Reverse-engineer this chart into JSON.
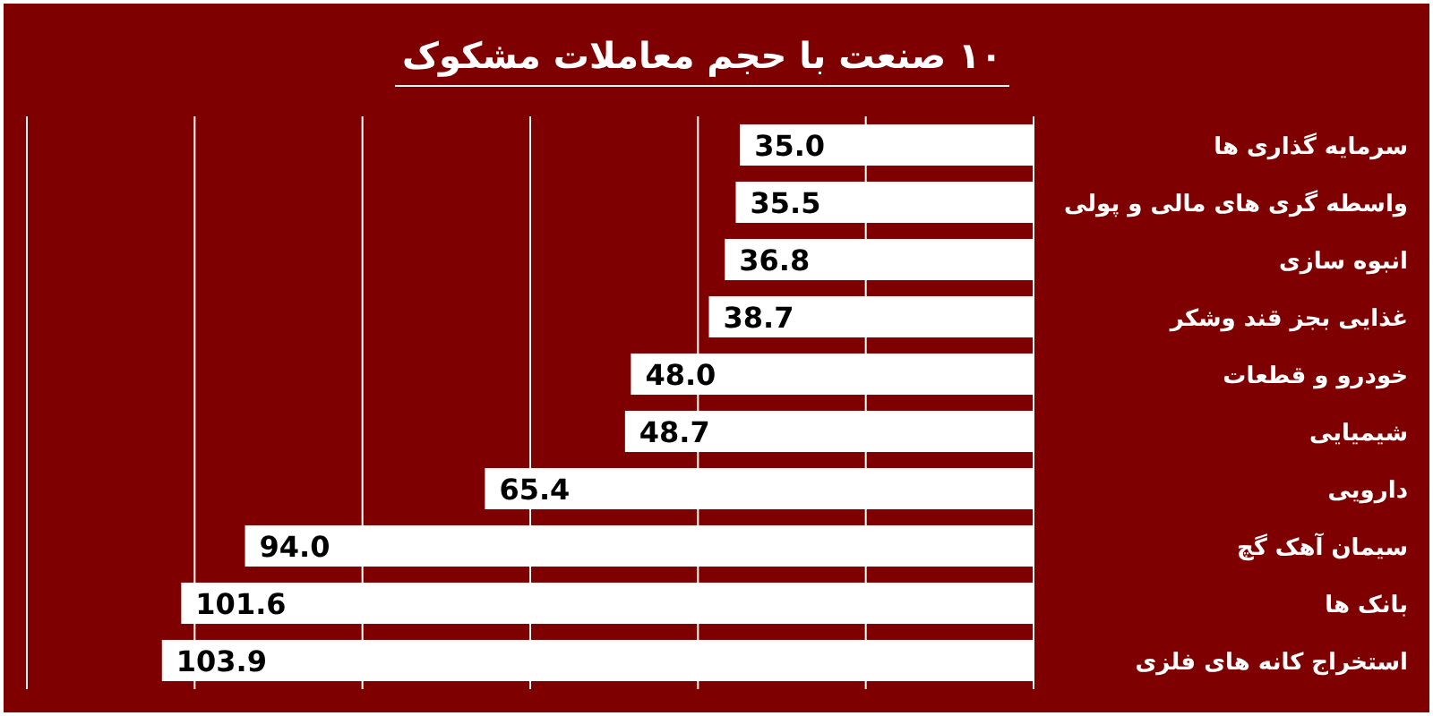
{
  "chart_data": {
    "type": "bar",
    "orientation": "horizontal",
    "title": "۱۰ صنعت با حجم معاملات مشکوک",
    "categories": [
      "سرمایه گذاری ها",
      "واسطه گری های مالی و پولی",
      "انبوه سازی",
      "غذایی بجز قند وشکر",
      "خودرو و قطعات",
      "شیمیایی",
      "دارویی",
      "سیمان آهک گچ",
      "بانک ها",
      "استخراج کانه های فلزی"
    ],
    "values": [
      35.0,
      35.5,
      36.8,
      38.7,
      48.0,
      48.7,
      65.4,
      94.0,
      101.6,
      103.9
    ],
    "value_labels": [
      "35.0",
      "35.5",
      "36.8",
      "38.7",
      "48.0",
      "48.7",
      "65.4",
      "94.0",
      "101.6",
      "103.9"
    ],
    "color": "#ffffff",
    "xlim": [
      120,
      0
    ],
    "xticks": [
      {
        "value": 0,
        "label": null
      },
      {
        "value": 20,
        "label": null
      },
      {
        "value": 40,
        "label": null
      },
      {
        "value": 60,
        "label": null
      },
      {
        "value": 80,
        "label": null
      },
      {
        "value": 100,
        "label": null
      },
      {
        "value": 120,
        "label": null
      }
    ],
    "grid": "x",
    "tick_labels": "y"
  }
}
